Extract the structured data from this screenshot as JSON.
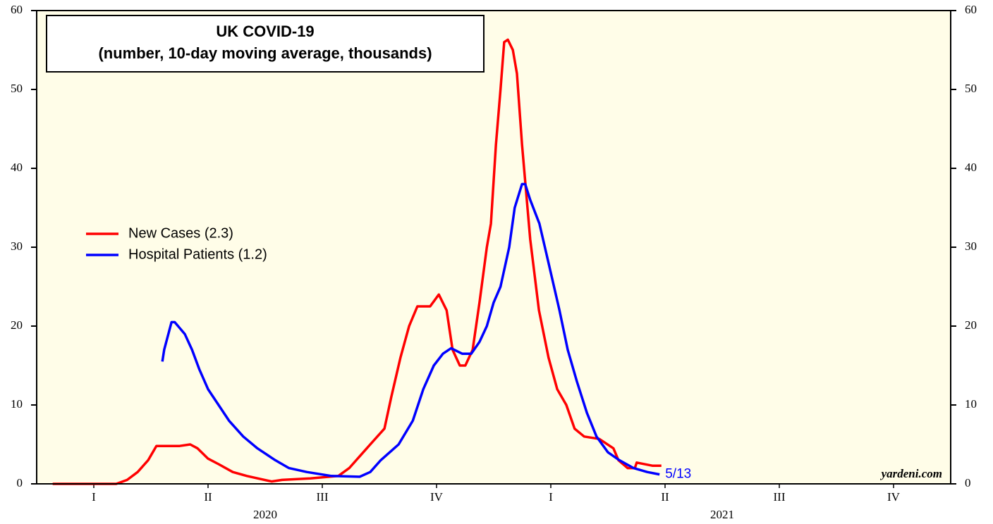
{
  "chart_data": {
    "type": "line",
    "title": "UK COVID-19",
    "subtitle": "(number, 10-day moving average, thousands)",
    "series": [
      {
        "name": "New Cases (2.3)",
        "color": "#ff0000",
        "x": [
          2020.035,
          2020.174,
          2020.198,
          2020.221,
          2020.244,
          2020.262,
          2020.29,
          2020.313,
          2020.336,
          2020.352,
          2020.375,
          2020.398,
          2020.429,
          2020.46,
          2020.491,
          2020.514,
          2020.537,
          2020.599,
          2020.66,
          2020.684,
          2020.707,
          2020.73,
          2020.761,
          2020.776,
          2020.796,
          2020.815,
          2020.833,
          2020.861,
          2020.88,
          2020.897,
          2020.91,
          2020.926,
          2020.938,
          2020.954,
          2020.969,
          2020.985,
          2020.994,
          2021.005,
          2021.015,
          2021.023,
          2021.031,
          2021.042,
          2021.051,
          2021.062,
          2021.08,
          2021.099,
          2021.12,
          2021.139,
          2021.159,
          2021.177,
          2021.198,
          2021.231,
          2021.262,
          2021.273,
          2021.293,
          2021.309,
          2021.313,
          2021.347,
          2021.367
        ],
        "values": [
          0,
          0,
          0.5,
          1.5,
          3,
          4.8,
          4.8,
          4.8,
          5,
          4.5,
          3.2,
          2.5,
          1.5,
          1.0,
          0.6,
          0.3,
          0.5,
          0.7,
          1,
          2,
          3.5,
          5,
          7,
          11,
          16,
          20,
          22.5,
          22.5,
          24,
          22,
          17,
          15,
          15,
          17,
          23,
          30,
          33,
          43,
          50,
          56,
          56.3,
          55,
          52,
          43,
          31,
          22,
          16,
          12,
          10,
          7,
          6,
          5.7,
          4.5,
          3,
          2,
          2,
          2.7,
          2.3,
          2.3
        ]
      },
      {
        "name": "Hospital Patients (1.2)",
        "color": "#0000ff",
        "x": [
          2020.275,
          2020.279,
          2020.295,
          2020.302,
          2020.324,
          2020.34,
          2020.356,
          2020.375,
          2020.398,
          2020.421,
          2020.452,
          2020.483,
          2020.522,
          2020.552,
          2020.591,
          2020.645,
          2020.707,
          2020.73,
          2020.753,
          2020.792,
          2020.823,
          2020.846,
          2020.869,
          2020.889,
          2020.907,
          2020.931,
          2020.951,
          2020.969,
          2020.985,
          2021.0,
          2021.015,
          2021.034,
          2021.046,
          2021.062,
          2021.069,
          2021.08,
          2021.1,
          2021.12,
          2021.144,
          2021.162,
          2021.182,
          2021.204,
          2021.225,
          2021.25,
          2021.275,
          2021.306,
          2021.336,
          2021.363
        ],
        "values": [
          15.5,
          17,
          20.5,
          20.5,
          19,
          17,
          14.5,
          12,
          10,
          8,
          6,
          4.5,
          3,
          2,
          1.5,
          1,
          0.9,
          1.5,
          3,
          5,
          8,
          12,
          15,
          16.5,
          17.2,
          16.5,
          16.5,
          18,
          20,
          23,
          25,
          30,
          35,
          38,
          38,
          36,
          33,
          28,
          22,
          17,
          13,
          9,
          6,
          4,
          3,
          2,
          1.5,
          1.2
        ]
      }
    ],
    "end_label": "5/13",
    "source": "yardeni.com",
    "xlim": [
      2020,
      2022
    ],
    "xticks": [
      {
        "value": 2020.125,
        "label": "I"
      },
      {
        "value": 2020.375,
        "label": "II"
      },
      {
        "value": 2020.625,
        "label": "III"
      },
      {
        "value": 2020.875,
        "label": "IV"
      },
      {
        "value": 2021.125,
        "label": "I"
      },
      {
        "value": 2021.375,
        "label": "II"
      },
      {
        "value": 2021.625,
        "label": "III"
      },
      {
        "value": 2021.875,
        "label": "IV"
      }
    ],
    "year_labels": [
      {
        "value": 2020.5,
        "label": "2020"
      },
      {
        "value": 2021.5,
        "label": "2021"
      }
    ],
    "ylim": [
      0,
      60
    ],
    "yticks": [
      0,
      10,
      20,
      30,
      40,
      50,
      60
    ],
    "y2lim": [
      0,
      60
    ],
    "y2ticks": [
      0,
      10,
      20,
      30,
      40,
      50,
      60
    ],
    "legend": "left",
    "background": "#fffde8"
  }
}
